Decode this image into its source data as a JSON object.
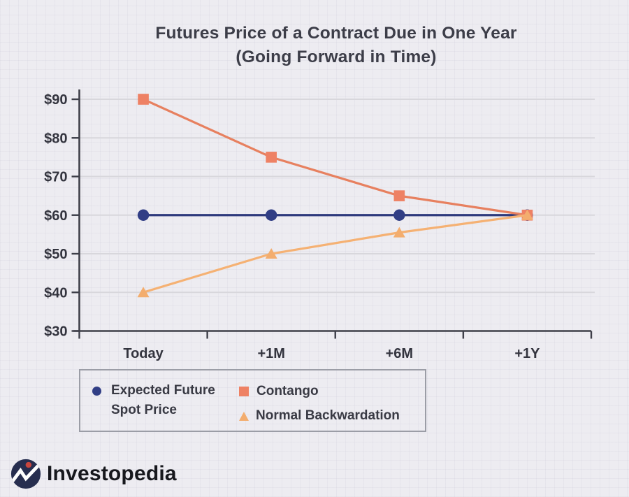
{
  "title": {
    "line1": "Futures Price of a Contract Due in One Year",
    "line2": "(Going Forward in Time)"
  },
  "chart_data": {
    "type": "line",
    "title": "Futures Price of a Contract Due in One Year (Going Forward in Time)",
    "categories": [
      "Today",
      "+1M",
      "+6M",
      "+1Y"
    ],
    "series": [
      {
        "name": "Expected Future Spot Price",
        "values": [
          60,
          60,
          60,
          60
        ],
        "line_color": "#2e3a7c",
        "marker": "circle",
        "marker_color": "#313e85"
      },
      {
        "name": "Contango",
        "values": [
          90,
          75,
          65,
          60
        ],
        "line_color": "#e7805f",
        "marker": "square",
        "marker_color": "#ee8164"
      },
      {
        "name": "Normal Backwardation",
        "values": [
          40,
          50,
          55.5,
          60
        ],
        "line_color": "#f5b173",
        "marker": "triangle",
        "marker_color": "#f3ad6e"
      }
    ],
    "y_ticks": [
      {
        "value": 30,
        "label": "$30"
      },
      {
        "value": 40,
        "label": "$40"
      },
      {
        "value": 50,
        "label": "$50"
      },
      {
        "value": 60,
        "label": "$60"
      },
      {
        "value": 70,
        "label": "$70"
      },
      {
        "value": 80,
        "label": "$80"
      },
      {
        "value": 90,
        "label": "$90"
      }
    ],
    "ylim": [
      30,
      93
    ],
    "grid": "horizontal",
    "legend_position": "bottom-left"
  },
  "legend": {
    "items": [
      {
        "label": "Expected Future Spot Price",
        "label_line1": "Expected Future",
        "label_line2": "Spot Price",
        "marker": "circle",
        "color": "#313e85"
      },
      {
        "label": "Contango",
        "marker": "square",
        "color": "#ee8164"
      },
      {
        "label": "Normal Backwardation",
        "marker": "triangle",
        "color": "#f3ad6e"
      }
    ]
  },
  "branding": {
    "wordmark": "Investopedia",
    "logo_icon": "investopedia-chart-line-icon"
  },
  "colors": {
    "background": "#edecf1",
    "axis": "#3e3f49",
    "gridline": "#d8d7dc",
    "tick_label": "#33343e",
    "title_text": "#3c3d48",
    "legend_border": "#9b9da6",
    "legend_text": "#393a44",
    "logo_circle": "#272e4f",
    "logo_zigzag": "#ffffff",
    "logo_dot": "#c9463d",
    "wordmark_text": "#17181d"
  }
}
